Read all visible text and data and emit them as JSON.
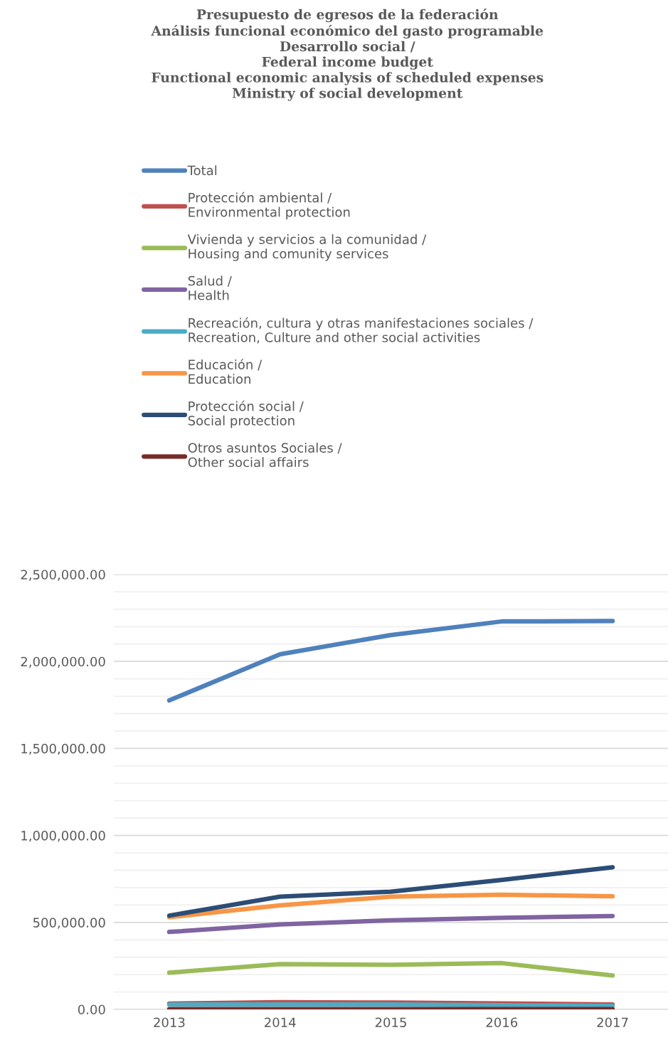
{
  "chart_data": {
    "type": "line",
    "title": "Presupuesto de egresos de la federación\nAnálisis funcional económico del gasto programable\nDesarrollo social /\nFederal income budget\nFunctional economic analysis of scheduled expenses\nMinistry of social development",
    "categories": [
      "2013",
      "2014",
      "2015",
      "2016",
      "2017"
    ],
    "series": [
      {
        "name": "Total",
        "color": "#4f81bd",
        "values": [
          1776000,
          2041000,
          2152000,
          2230000,
          2232000
        ]
      },
      {
        "name": "Protección ambiental /\nEnvironmental protection",
        "color": "#c0504d",
        "values": [
          33000,
          41000,
          39000,
          34000,
          28000
        ]
      },
      {
        "name": "Vivienda y servicios a la comunidad /\nHousing and comunity services",
        "color": "#9bbb59",
        "values": [
          211000,
          260000,
          256000,
          266000,
          195000
        ]
      },
      {
        "name": "Salud /\nHealth",
        "color": "#8064a2",
        "values": [
          445000,
          488000,
          512000,
          526000,
          537000
        ]
      },
      {
        "name": "Recreación, cultura y otras manifestaciones sociales /\nRecreation, Culture and other social activities",
        "color": "#4bacc6",
        "values": [
          28000,
          28000,
          28000,
          24000,
          20000
        ]
      },
      {
        "name": "Educación /\nEducation",
        "color": "#f79646",
        "values": [
          530000,
          598000,
          648000,
          659000,
          650000
        ]
      },
      {
        "name": "Protección social /\nSocial protection",
        "color": "#2c4d75",
        "values": [
          539000,
          648000,
          677000,
          744000,
          817000
        ]
      },
      {
        "name": "Otros asuntos Sociales /\nOther social affairs",
        "color": "#772c2a",
        "values": [
          2000,
          2000,
          2000,
          2000,
          2000
        ]
      }
    ],
    "ylim": [
      0,
      2500000
    ],
    "yticks": [
      {
        "value": 0,
        "label": "0.00"
      },
      {
        "value": 100000,
        "label": null
      },
      {
        "value": 200000,
        "label": null
      },
      {
        "value": 300000,
        "label": null
      },
      {
        "value": 400000,
        "label": null
      },
      {
        "value": 500000,
        "label": "500,000.00"
      },
      {
        "value": 600000,
        "label": null
      },
      {
        "value": 700000,
        "label": null
      },
      {
        "value": 800000,
        "label": null
      },
      {
        "value": 900000,
        "label": null
      },
      {
        "value": 1000000,
        "label": "1,000,000.00"
      },
      {
        "value": 1100000,
        "label": null
      },
      {
        "value": 1200000,
        "label": null
      },
      {
        "value": 1300000,
        "label": null
      },
      {
        "value": 1400000,
        "label": null
      },
      {
        "value": 1500000,
        "label": "1,500,000.00"
      },
      {
        "value": 1600000,
        "label": null
      },
      {
        "value": 1700000,
        "label": null
      },
      {
        "value": 1800000,
        "label": null
      },
      {
        "value": 1900000,
        "label": null
      },
      {
        "value": 2000000,
        "label": "2,000,000.00"
      },
      {
        "value": 2100000,
        "label": null
      },
      {
        "value": 2200000,
        "label": null
      },
      {
        "value": 2300000,
        "label": null
      },
      {
        "value": 2400000,
        "label": null
      },
      {
        "value": 2500000,
        "label": "2,500,000.00"
      }
    ],
    "grid": "y",
    "legend": "top",
    "marker": "none",
    "line_style": "solid"
  }
}
